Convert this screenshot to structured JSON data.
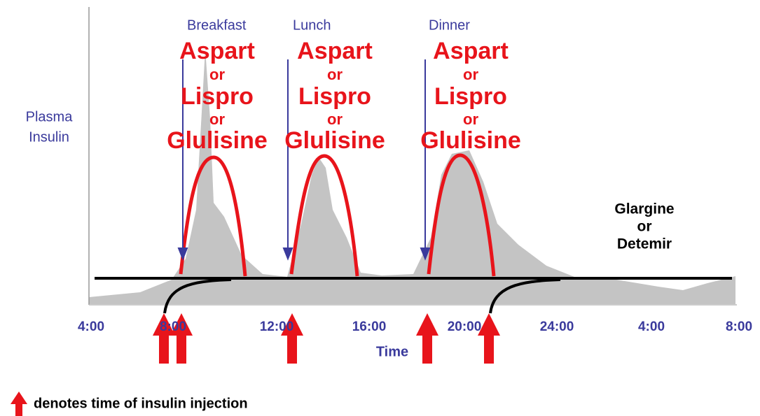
{
  "y_label": [
    "Plasma",
    "Insulin"
  ],
  "x_label": "Time",
  "time_ticks": [
    "4:00",
    "8:00",
    "12:00",
    "16:00",
    "20:00",
    "24:00",
    "4:00",
    "8:00"
  ],
  "meals": [
    {
      "name": "Breakfast",
      "insulin": [
        "Aspart",
        "or",
        "Lispro",
        "or",
        "Glulisine"
      ]
    },
    {
      "name": "Lunch",
      "insulin": [
        "Aspart",
        "or",
        "Lispro",
        "or",
        "Glulisine"
      ]
    },
    {
      "name": "Dinner",
      "insulin": [
        "Aspart",
        "or",
        "Lispro",
        "or",
        "Glulisine"
      ]
    }
  ],
  "basal_insulin": [
    "Glargine",
    "or",
    "Detemir"
  ],
  "legend": "denotes time of insulin injection"
}
